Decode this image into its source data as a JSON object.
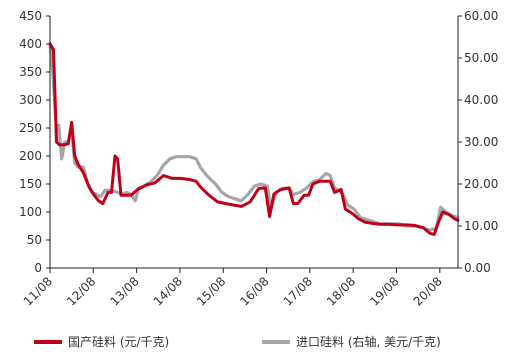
{
  "chart_data": {
    "type": "line",
    "left_axis": {
      "min": 0,
      "max": 450,
      "step": 50,
      "ticks": [
        "0",
        "50",
        "100",
        "150",
        "200",
        "250",
        "300",
        "350",
        "400",
        "450"
      ]
    },
    "right_axis": {
      "min": 0,
      "max": 60,
      "step": 10,
      "ticks": [
        "0.00",
        "10.00",
        "20.00",
        "30.00",
        "40.00",
        "50.00",
        "60.00"
      ]
    },
    "x_axis": {
      "start": 2011.58,
      "end": 2021.0,
      "tick_labels": [
        "11/08",
        "12/08",
        "13/08",
        "14/08",
        "15/08",
        "16/08",
        "17/08",
        "18/08",
        "19/08",
        "20/08"
      ],
      "tick_positions": [
        2011.58,
        2012.58,
        2013.58,
        2014.58,
        2015.58,
        2016.58,
        2017.58,
        2018.58,
        2019.58,
        2020.58
      ]
    },
    "grid": false,
    "legend_position": "bottom",
    "series": [
      {
        "name": "国产硅料 (元/千克)",
        "axis": "left",
        "color": "#c0001a",
        "points": [
          [
            2011.58,
            400
          ],
          [
            2011.66,
            390
          ],
          [
            2011.73,
            225
          ],
          [
            2011.8,
            220
          ],
          [
            2011.9,
            220
          ],
          [
            2012.0,
            222
          ],
          [
            2012.08,
            260
          ],
          [
            2012.15,
            200
          ],
          [
            2012.23,
            185
          ],
          [
            2012.35,
            170
          ],
          [
            2012.48,
            145
          ],
          [
            2012.6,
            130
          ],
          [
            2012.7,
            120
          ],
          [
            2012.8,
            115
          ],
          [
            2012.92,
            135
          ],
          [
            2013.0,
            135
          ],
          [
            2013.08,
            200
          ],
          [
            2013.14,
            195
          ],
          [
            2013.22,
            130
          ],
          [
            2013.3,
            130
          ],
          [
            2013.45,
            130
          ],
          [
            2013.6,
            140
          ],
          [
            2013.8,
            148
          ],
          [
            2014.0,
            152
          ],
          [
            2014.2,
            165
          ],
          [
            2014.4,
            160
          ],
          [
            2014.6,
            160
          ],
          [
            2014.8,
            158
          ],
          [
            2014.95,
            155
          ],
          [
            2015.05,
            145
          ],
          [
            2015.25,
            130
          ],
          [
            2015.45,
            118
          ],
          [
            2015.65,
            115
          ],
          [
            2015.85,
            112
          ],
          [
            2016.0,
            110
          ],
          [
            2016.2,
            118
          ],
          [
            2016.4,
            142
          ],
          [
            2016.55,
            143
          ],
          [
            2016.65,
            92
          ],
          [
            2016.75,
            132
          ],
          [
            2016.9,
            140
          ],
          [
            2017.1,
            143
          ],
          [
            2017.2,
            115
          ],
          [
            2017.3,
            115
          ],
          [
            2017.45,
            130
          ],
          [
            2017.55,
            130
          ],
          [
            2017.65,
            150
          ],
          [
            2017.8,
            155
          ],
          [
            2017.95,
            155
          ],
          [
            2018.05,
            155
          ],
          [
            2018.15,
            135
          ],
          [
            2018.3,
            140
          ],
          [
            2018.4,
            105
          ],
          [
            2018.55,
            98
          ],
          [
            2018.7,
            88
          ],
          [
            2018.85,
            82
          ],
          [
            2019.0,
            80
          ],
          [
            2019.2,
            78
          ],
          [
            2019.4,
            78
          ],
          [
            2019.6,
            77
          ],
          [
            2019.8,
            77
          ],
          [
            2020.0,
            76
          ],
          [
            2020.2,
            72
          ],
          [
            2020.35,
            62
          ],
          [
            2020.45,
            60
          ],
          [
            2020.55,
            82
          ],
          [
            2020.65,
            100
          ],
          [
            2020.8,
            95
          ],
          [
            2020.92,
            88
          ],
          [
            2021.0,
            85
          ]
        ]
      },
      {
        "name": "进口硅料 (右轴, 美元/千克)",
        "axis": "right",
        "color": "#a6a6a6",
        "points": [
          [
            2011.58,
            53.5
          ],
          [
            2011.65,
            46.0
          ],
          [
            2011.72,
            34.0
          ],
          [
            2011.78,
            34.0
          ],
          [
            2011.85,
            26.0
          ],
          [
            2011.92,
            30.0
          ],
          [
            2012.0,
            30.0
          ],
          [
            2012.08,
            33.0
          ],
          [
            2012.15,
            25.0
          ],
          [
            2012.23,
            24.0
          ],
          [
            2012.35,
            24.0
          ],
          [
            2012.45,
            20.0
          ],
          [
            2012.55,
            18.0
          ],
          [
            2012.65,
            17.5
          ],
          [
            2012.75,
            17.0
          ],
          [
            2012.85,
            18.5
          ],
          [
            2013.0,
            18.5
          ],
          [
            2013.15,
            18.0
          ],
          [
            2013.25,
            17.5
          ],
          [
            2013.35,
            18.0
          ],
          [
            2013.45,
            17.5
          ],
          [
            2013.55,
            16.0
          ],
          [
            2013.62,
            19.0
          ],
          [
            2013.75,
            19.5
          ],
          [
            2013.9,
            20.5
          ],
          [
            2014.05,
            22.0
          ],
          [
            2014.2,
            24.5
          ],
          [
            2014.35,
            26.0
          ],
          [
            2014.5,
            26.5
          ],
          [
            2014.65,
            26.5
          ],
          [
            2014.8,
            26.5
          ],
          [
            2014.95,
            26.0
          ],
          [
            2015.05,
            24.0
          ],
          [
            2015.2,
            22.0
          ],
          [
            2015.4,
            20.0
          ],
          [
            2015.55,
            18.0
          ],
          [
            2015.7,
            17.0
          ],
          [
            2015.85,
            16.5
          ],
          [
            2016.0,
            16.0
          ],
          [
            2016.15,
            17.5
          ],
          [
            2016.3,
            19.5
          ],
          [
            2016.45,
            20.0
          ],
          [
            2016.6,
            19.5
          ],
          [
            2016.68,
            14.0
          ],
          [
            2016.8,
            18.0
          ],
          [
            2016.95,
            19.0
          ],
          [
            2017.1,
            19.0
          ],
          [
            2017.2,
            17.5
          ],
          [
            2017.35,
            18.0
          ],
          [
            2017.5,
            19.0
          ],
          [
            2017.65,
            20.5
          ],
          [
            2017.8,
            21.0
          ],
          [
            2017.95,
            22.5
          ],
          [
            2018.05,
            22.0
          ],
          [
            2018.15,
            19.0
          ],
          [
            2018.25,
            18.5
          ],
          [
            2018.35,
            17.5
          ],
          [
            2018.45,
            15.0
          ],
          [
            2018.6,
            14.0
          ],
          [
            2018.75,
            12.0
          ],
          [
            2018.9,
            11.5
          ],
          [
            2019.05,
            11.0
          ],
          [
            2019.2,
            10.5
          ],
          [
            2019.35,
            10.5
          ],
          [
            2019.5,
            10.5
          ],
          [
            2019.65,
            10.5
          ],
          [
            2019.8,
            10.0
          ],
          [
            2020.0,
            10.0
          ],
          [
            2020.2,
            9.5
          ],
          [
            2020.35,
            9.0
          ],
          [
            2020.5,
            9.5
          ],
          [
            2020.6,
            14.5
          ],
          [
            2020.7,
            13.5
          ],
          [
            2020.85,
            12.5
          ],
          [
            2021.0,
            12.0
          ]
        ]
      }
    ]
  }
}
